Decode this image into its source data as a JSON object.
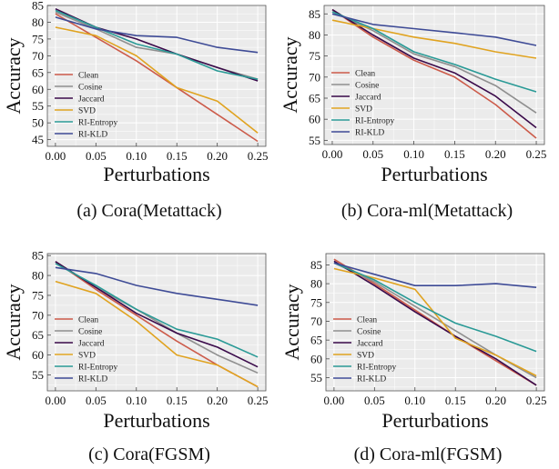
{
  "chart_data": [
    {
      "type": "line",
      "caption": "(a)  Cora(Metattack)",
      "xlabel": "Perturbations",
      "ylabel": "Accuracy",
      "x": [
        0.0,
        0.05,
        0.1,
        0.15,
        0.2,
        0.25
      ],
      "xticks": [
        "0.00",
        "0.05",
        "0.10",
        "0.15",
        "0.20",
        "0.25"
      ],
      "xlim": [
        -0.01,
        0.26
      ],
      "ylim": [
        43,
        85
      ],
      "yticks": [
        45,
        50,
        55,
        60,
        65,
        70,
        75,
        80,
        85
      ],
      "grid": true,
      "legend": "lower-left",
      "series": [
        {
          "name": "Clean",
          "color": "#cc5b4a",
          "values": [
            82.5,
            75.5,
            68.5,
            60.5,
            52.5,
            44.5
          ]
        },
        {
          "name": "Cosine",
          "color": "#8f8f8f",
          "values": [
            83.0,
            78.0,
            72.5,
            70.5,
            66.5,
            63.0
          ]
        },
        {
          "name": "Jaccard",
          "color": "#3a0a4a",
          "values": [
            84.0,
            78.5,
            75.0,
            70.5,
            66.5,
            62.5
          ]
        },
        {
          "name": "SVD",
          "color": "#e0a320",
          "values": [
            78.5,
            76.0,
            70.0,
            60.5,
            56.5,
            47.0
          ]
        },
        {
          "name": "RI-Entropy",
          "color": "#2a9a96",
          "values": [
            83.5,
            78.5,
            73.5,
            70.5,
            65.5,
            63.0
          ]
        },
        {
          "name": "RI-KLD",
          "color": "#3e4b96",
          "values": [
            81.5,
            78.0,
            76.0,
            75.5,
            72.5,
            71.0
          ]
        }
      ]
    },
    {
      "type": "line",
      "caption": "(b)  Cora-ml(Metattack)",
      "xlabel": "Perturbations",
      "ylabel": "Accuracy",
      "x": [
        0.0,
        0.05,
        0.1,
        0.15,
        0.2,
        0.25
      ],
      "xticks": [
        "0.00",
        "0.05",
        "0.10",
        "0.15",
        "0.20",
        "0.25"
      ],
      "xlim": [
        -0.01,
        0.26
      ],
      "ylim": [
        54,
        87
      ],
      "yticks": [
        55,
        60,
        65,
        70,
        75,
        80,
        85
      ],
      "grid": true,
      "legend": "lower-left",
      "series": [
        {
          "name": "Clean",
          "color": "#cc5b4a",
          "values": [
            86.0,
            79.5,
            74.0,
            70.0,
            63.5,
            55.5
          ]
        },
        {
          "name": "Cosine",
          "color": "#8f8f8f",
          "values": [
            85.5,
            81.0,
            75.5,
            72.5,
            68.0,
            61.5
          ]
        },
        {
          "name": "Jaccard",
          "color": "#3a0a4a",
          "values": [
            86.0,
            80.0,
            74.5,
            71.0,
            65.5,
            58.0
          ]
        },
        {
          "name": "SVD",
          "color": "#e0a320",
          "values": [
            83.5,
            81.5,
            79.5,
            78.0,
            76.0,
            74.5
          ]
        },
        {
          "name": "RI-Entropy",
          "color": "#2a9a96",
          "values": [
            85.5,
            81.5,
            76.0,
            73.0,
            69.5,
            66.5
          ]
        },
        {
          "name": "RI-KLD",
          "color": "#3e4b96",
          "values": [
            85.0,
            82.5,
            81.5,
            80.5,
            79.5,
            77.5
          ]
        }
      ]
    },
    {
      "type": "line",
      "caption": "(c)  Cora(FGSM)",
      "xlabel": "Perturbations",
      "ylabel": "Accuracy",
      "x": [
        0.0,
        0.05,
        0.1,
        0.15,
        0.2,
        0.25
      ],
      "xticks": [
        "0.00",
        "0.05",
        "0.10",
        "0.15",
        "0.20",
        "0.25"
      ],
      "xlim": [
        -0.01,
        0.26
      ],
      "ylim": [
        51,
        85.5
      ],
      "yticks": [
        55,
        60,
        65,
        70,
        75,
        80,
        85
      ],
      "grid": true,
      "legend": "lower-left",
      "series": [
        {
          "name": "Clean",
          "color": "#cc5b4a",
          "values": [
            83.5,
            76.5,
            70.0,
            63.5,
            57.5,
            52.0
          ]
        },
        {
          "name": "Cosine",
          "color": "#8f8f8f",
          "values": [
            83.5,
            77.0,
            71.5,
            65.5,
            60.0,
            55.5
          ]
        },
        {
          "name": "Jaccard",
          "color": "#3a0a4a",
          "values": [
            83.5,
            77.0,
            70.5,
            65.5,
            62.0,
            57.0
          ]
        },
        {
          "name": "SVD",
          "color": "#e0a320",
          "values": [
            78.5,
            75.5,
            68.5,
            60.0,
            57.5,
            52.0
          ]
        },
        {
          "name": "RI-Entropy",
          "color": "#2a9a96",
          "values": [
            83.0,
            77.5,
            71.5,
            66.5,
            64.0,
            59.5
          ]
        },
        {
          "name": "RI-KLD",
          "color": "#3e4b96",
          "values": [
            82.0,
            80.5,
            77.5,
            75.5,
            74.0,
            72.5
          ]
        }
      ]
    },
    {
      "type": "line",
      "caption": "(d)  Cora-ml(FGSM)",
      "xlabel": "Perturbations",
      "ylabel": "Accuracy",
      "x": [
        0.0,
        0.05,
        0.1,
        0.15,
        0.2,
        0.25
      ],
      "xticks": [
        "0.00",
        "0.05",
        "0.10",
        "0.15",
        "0.20",
        "0.25"
      ],
      "xlim": [
        -0.01,
        0.26
      ],
      "ylim": [
        51.5,
        88
      ],
      "yticks": [
        55,
        60,
        65,
        70,
        75,
        80,
        85
      ],
      "grid": true,
      "legend": "lower-left",
      "series": [
        {
          "name": "Clean",
          "color": "#cc5b4a",
          "values": [
            86.5,
            80.0,
            73.0,
            66.0,
            59.5,
            53.0
          ]
        },
        {
          "name": "Cosine",
          "color": "#8f8f8f",
          "values": [
            85.5,
            80.5,
            74.0,
            67.5,
            61.0,
            55.0
          ]
        },
        {
          "name": "Jaccard",
          "color": "#3a0a4a",
          "values": [
            86.0,
            79.5,
            72.5,
            66.0,
            60.0,
            53.0
          ]
        },
        {
          "name": "SVD",
          "color": "#e0a320",
          "values": [
            84.0,
            81.5,
            78.5,
            65.5,
            61.0,
            55.5
          ]
        },
        {
          "name": "RI-Entropy",
          "color": "#2a9a96",
          "values": [
            85.5,
            81.0,
            75.0,
            69.5,
            66.0,
            62.0
          ]
        },
        {
          "name": "RI-KLD",
          "color": "#3e4b96",
          "values": [
            85.5,
            82.5,
            79.5,
            79.5,
            80.0,
            79.0
          ]
        }
      ]
    }
  ]
}
